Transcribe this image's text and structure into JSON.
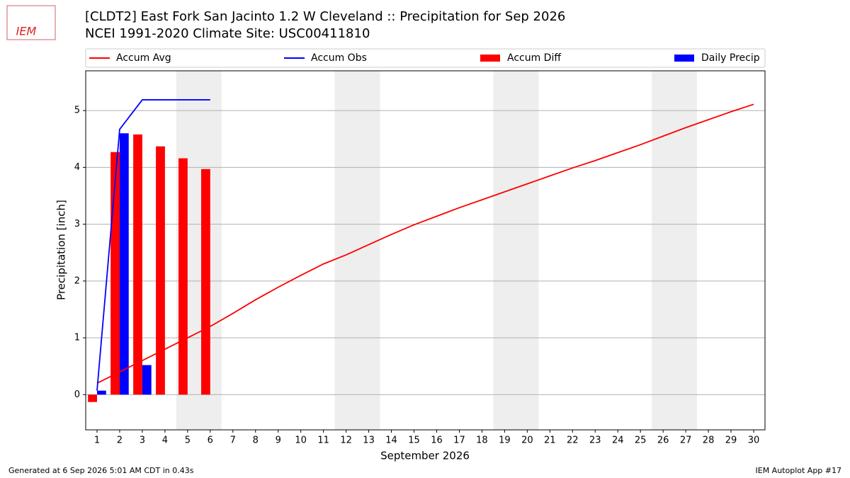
{
  "chart_data": {
    "type": "combo",
    "logo_text": "IEM",
    "title": "[CLDT2] East Fork San Jacinto 1.2 W Cleveland :: Precipitation for Sep 2026",
    "subtitle": "NCEI 1991-2020 Climate Site: USC00411810",
    "y_label": "Precipitation [inch]",
    "x_label": "September 2026",
    "footer_left": "Generated at 6 Sep 2026 5:01 AM CDT in 0.43s",
    "footer_right": "IEM Autoplot App #17",
    "x": [
      1,
      2,
      3,
      4,
      5,
      6,
      7,
      8,
      9,
      10,
      11,
      12,
      13,
      14,
      15,
      16,
      17,
      18,
      19,
      20,
      21,
      22,
      23,
      24,
      25,
      26,
      27,
      28,
      29,
      30
    ],
    "xlim": [
      0.5,
      30.5
    ],
    "xticks": [
      1,
      2,
      3,
      4,
      5,
      6,
      7,
      8,
      9,
      10,
      11,
      12,
      13,
      14,
      15,
      16,
      17,
      18,
      19,
      20,
      21,
      22,
      23,
      24,
      25,
      26,
      27,
      28,
      29,
      30
    ],
    "ylim": [
      -0.62,
      5.7
    ],
    "yticks": [
      0,
      1,
      2,
      3,
      4,
      5
    ],
    "grid": true,
    "shaded_spans": [
      [
        4.5,
        6.5
      ],
      [
        11.5,
        13.5
      ],
      [
        18.5,
        20.5
      ],
      [
        25.5,
        27.5
      ]
    ],
    "shade_color": "#eeeeee",
    "series": [
      {
        "name": "Accum Avg",
        "type": "line",
        "color": "#ff0000",
        "values": [
          0.2,
          0.4,
          0.6,
          0.8,
          1.0,
          1.2,
          1.43,
          1.67,
          1.89,
          2.1,
          2.3,
          2.46,
          2.64,
          2.82,
          2.99,
          3.14,
          3.29,
          3.43,
          3.57,
          3.71,
          3.85,
          3.99,
          4.12,
          4.26,
          4.4,
          4.55,
          4.7,
          4.84,
          4.98,
          5.11
        ]
      },
      {
        "name": "Accum Obs",
        "type": "line",
        "color": "#0000ff",
        "values": [
          0.07,
          4.67,
          5.19,
          5.19,
          5.19,
          5.19,
          null,
          null,
          null,
          null,
          null,
          null,
          null,
          null,
          null,
          null,
          null,
          null,
          null,
          null,
          null,
          null,
          null,
          null,
          null,
          null,
          null,
          null,
          null,
          null
        ]
      },
      {
        "name": "Accum Diff",
        "type": "bar",
        "color": "#ff0000",
        "values": [
          -0.13,
          4.27,
          4.58,
          4.37,
          4.16,
          3.97,
          null,
          null,
          null,
          null,
          null,
          null,
          null,
          null,
          null,
          null,
          null,
          null,
          null,
          null,
          null,
          null,
          null,
          null,
          null,
          null,
          null,
          null,
          null,
          null
        ]
      },
      {
        "name": "Daily Precip",
        "type": "bar",
        "color": "#0000ff",
        "values": [
          0.07,
          4.6,
          0.52,
          0,
          0,
          0,
          null,
          null,
          null,
          null,
          null,
          null,
          null,
          null,
          null,
          null,
          null,
          null,
          null,
          null,
          null,
          null,
          null,
          null,
          null,
          null,
          null,
          null,
          null,
          null
        ]
      }
    ]
  }
}
